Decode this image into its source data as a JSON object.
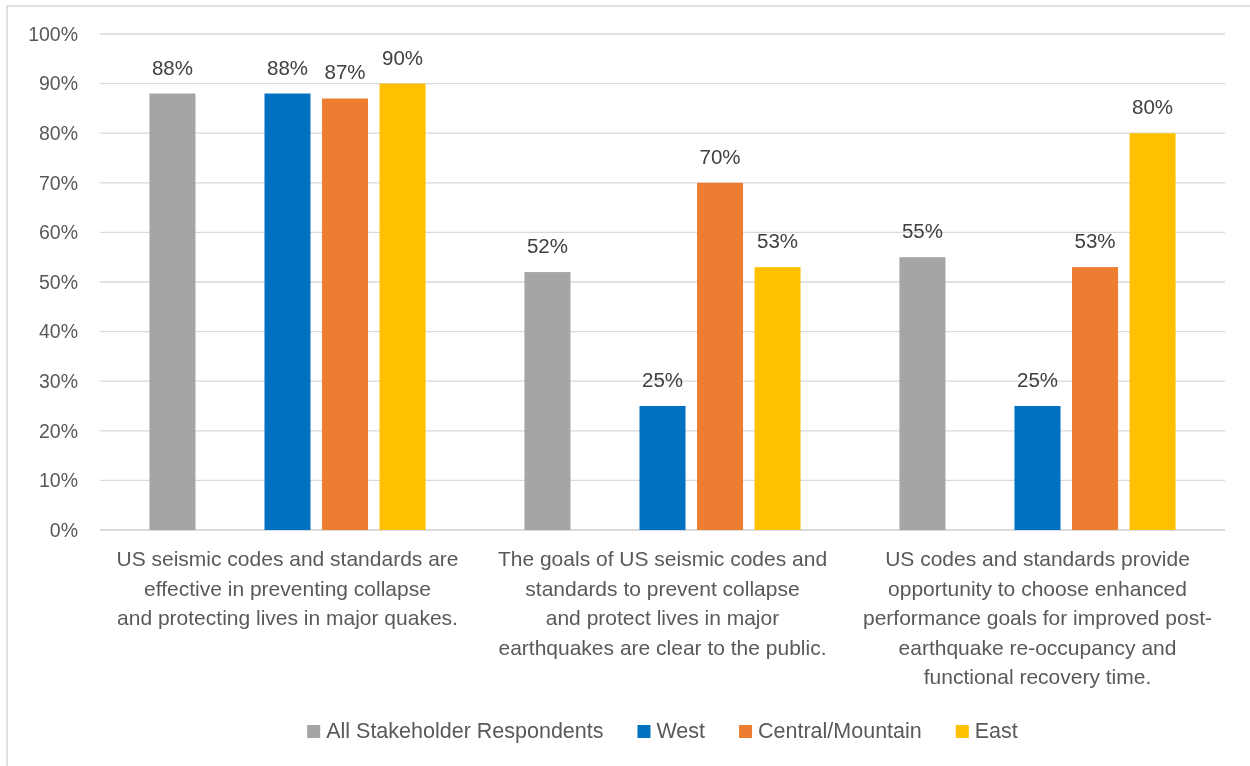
{
  "chart_data": {
    "type": "bar",
    "categories": [
      "US seismic codes and standards are\neffective in preventing collapse\nand protecting lives in major quakes.",
      "The goals of US seismic codes and\nstandards to prevent collapse\nand protect lives in major\nearthquakes are clear to the public.",
      "US codes and standards provide\nopportunity to choose enhanced\nperformance goals for improved post-\nearthquake re-occupancy and\nfunctional recovery time."
    ],
    "series": [
      {
        "name": "All Stakeholder Respondents",
        "color": "#a5a5a5",
        "values": [
          88,
          52,
          55
        ],
        "value_labels": [
          "88%",
          "52%",
          "55%"
        ]
      },
      {
        "name": "West",
        "color": "#0070c0",
        "values": [
          88,
          25,
          25
        ],
        "value_labels": [
          "88%",
          "25%",
          "25%"
        ]
      },
      {
        "name": "Central/Mountain",
        "color": "#ed7d31",
        "values": [
          87,
          70,
          53
        ],
        "value_labels": [
          "87%",
          "70%",
          "53%"
        ]
      },
      {
        "name": "East",
        "color": "#ffc000",
        "values": [
          90,
          53,
          80
        ],
        "value_labels": [
          "90%",
          "53%",
          "80%"
        ]
      }
    ],
    "ylim": [
      0,
      100
    ],
    "yticks": [
      {
        "value": 0,
        "label": "0%"
      },
      {
        "value": 10,
        "label": "10%"
      },
      {
        "value": 20,
        "label": "20%"
      },
      {
        "value": 30,
        "label": "30%"
      },
      {
        "value": 40,
        "label": "40%"
      },
      {
        "value": 50,
        "label": "50%"
      },
      {
        "value": 60,
        "label": "60%"
      },
      {
        "value": 70,
        "label": "70%"
      },
      {
        "value": 80,
        "label": "80%"
      },
      {
        "value": 90,
        "label": "90%"
      },
      {
        "value": 100,
        "label": "100%"
      }
    ],
    "grid": "y",
    "legend": "bottom"
  }
}
